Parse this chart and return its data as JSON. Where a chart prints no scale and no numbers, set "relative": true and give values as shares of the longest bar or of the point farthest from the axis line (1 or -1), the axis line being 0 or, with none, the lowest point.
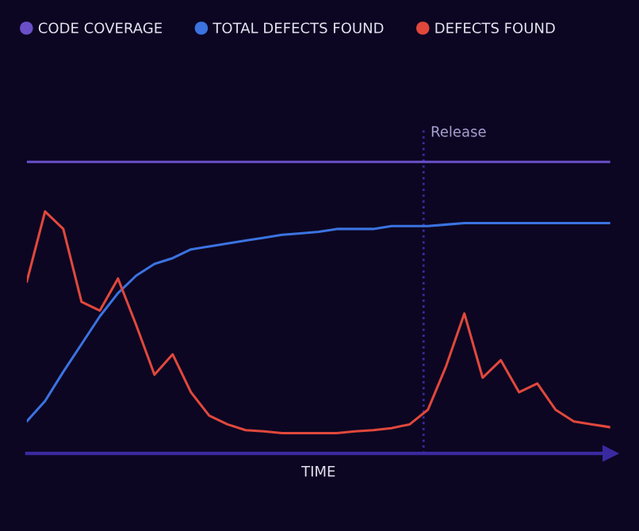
{
  "chart_data": {
    "type": "line",
    "relative": true,
    "xlabel": "TIME",
    "legend": "top left",
    "grid": false,
    "marker": "none",
    "line_style": "solid",
    "categories": [
      null,
      null,
      null,
      null,
      null,
      null,
      null,
      null,
      null,
      null,
      null,
      null,
      null,
      null,
      null,
      null,
      null,
      null,
      null,
      null,
      null,
      null,
      null,
      null,
      null,
      null,
      null,
      null,
      null,
      null,
      null,
      null,
      null
    ],
    "series": [
      {
        "name": "CODE COVERAGE",
        "color": "#6a4fc9",
        "values": [
          1,
          1,
          1,
          1,
          1,
          1,
          1,
          1,
          1,
          1,
          1,
          1,
          1,
          1,
          1,
          1,
          1,
          1,
          1,
          1,
          1,
          1,
          1,
          1,
          1,
          1,
          1,
          1,
          1,
          1,
          1,
          1,
          1
        ]
      },
      {
        "name": "TOTAL DEFECTS FOUND",
        "color": "#3b73e0",
        "values": [
          0.11,
          0.18,
          0.28,
          0.375,
          0.47,
          0.55,
          0.61,
          0.65,
          0.67,
          0.7,
          0.71,
          0.72,
          0.73,
          0.74,
          0.75,
          0.755,
          0.76,
          0.77,
          0.77,
          0.77,
          0.78,
          0.78,
          0.78,
          0.785,
          0.79,
          0.79,
          0.79,
          0.79,
          0.79,
          0.79,
          0.79,
          0.79,
          0.79
        ]
      },
      {
        "name": "DEFECTS FOUND",
        "color": "#e0483c",
        "values": [
          0.59,
          0.83,
          0.77,
          0.52,
          0.49,
          0.6,
          0.44,
          0.27,
          0.34,
          0.21,
          0.13,
          0.1,
          0.08,
          0.076,
          0.07,
          0.07,
          0.07,
          0.07,
          0.076,
          0.08,
          0.087,
          0.1,
          0.15,
          0.3,
          0.48,
          0.26,
          0.32,
          0.21,
          0.24,
          0.15,
          0.11,
          0.1,
          0.09
        ]
      }
    ],
    "annotations": [
      "Release"
    ]
  }
}
